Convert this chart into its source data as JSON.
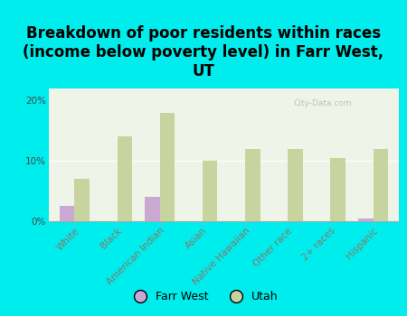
{
  "title": "Breakdown of poor residents within races\n(income below poverty level) in Farr West,\nUT",
  "categories": [
    "White",
    "Black",
    "American Indian",
    "Asian",
    "Native Hawaiian",
    "Other race",
    "2+ races",
    "Hispanic"
  ],
  "farr_west": [
    2.5,
    0.0,
    4.0,
    0.0,
    0.0,
    0.0,
    0.0,
    0.5
  ],
  "utah": [
    7.0,
    14.0,
    18.0,
    10.0,
    12.0,
    12.0,
    10.5,
    12.0
  ],
  "farr_west_color": "#c9a8d4",
  "utah_color": "#c8d4a0",
  "background_color": "#00eded",
  "plot_bg_color": "#eef5e8",
  "ylim": [
    0,
    22
  ],
  "yticks": [
    0,
    10,
    20
  ],
  "ytick_labels": [
    "0%",
    "10%",
    "20%"
  ],
  "bar_width": 0.35,
  "title_fontsize": 12,
  "tick_fontsize": 7.5,
  "legend_farr_west": "Farr West",
  "legend_utah": "Utah",
  "watermark": "City-Data.com"
}
